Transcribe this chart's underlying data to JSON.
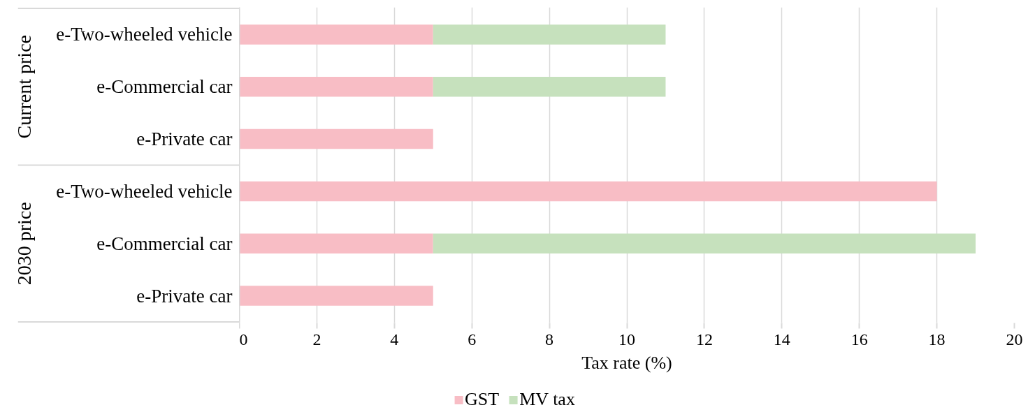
{
  "chart_data": {
    "type": "bar",
    "orientation": "horizontal",
    "stacked": true,
    "categories": [
      "e-Two-wheeled vehicle",
      "e-Commercial car",
      "e-Private car",
      "e-Two-wheeled vehicle",
      "e-Commercial car",
      "e-Private car"
    ],
    "series": [
      {
        "name": "GST",
        "color": "#f8bdc5",
        "values": [
          5,
          5,
          5,
          18,
          5,
          5
        ]
      },
      {
        "name": "MV tax",
        "color": "#c6e1bd",
        "values": [
          6,
          6,
          null,
          null,
          14,
          null
        ]
      }
    ],
    "xlabel": "Tax rate (%)",
    "xlim": [
      0,
      20
    ],
    "xticks": [
      0,
      2,
      4,
      6,
      8,
      10,
      12,
      14,
      16,
      18,
      20
    ],
    "grid": "x",
    "legend": "bottom",
    "annotations": [
      "Current price",
      "2030 price"
    ]
  }
}
